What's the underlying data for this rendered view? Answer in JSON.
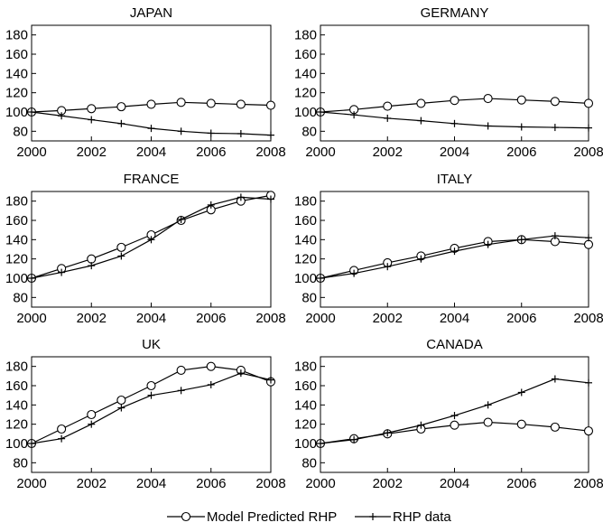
{
  "chart_data": [
    {
      "type": "line",
      "title": "JAPAN",
      "x": [
        2000,
        2001,
        2002,
        2003,
        2004,
        2005,
        2006,
        2007,
        2008
      ],
      "xticks": [
        2000,
        2002,
        2004,
        2006,
        2008
      ],
      "yticks": [
        80,
        100,
        120,
        140,
        160,
        180
      ],
      "xlim": [
        2000,
        2008
      ],
      "ylim": [
        70,
        190
      ],
      "series": [
        {
          "name": "Model Predicted RHP",
          "marker": "circle",
          "values": [
            100,
            101.5,
            103.5,
            105.5,
            108,
            110,
            109,
            108,
            107
          ]
        },
        {
          "name": "RHP data",
          "marker": "plus",
          "values": [
            100,
            96,
            92,
            88,
            83,
            80,
            78,
            77.5,
            76
          ]
        }
      ]
    },
    {
      "type": "line",
      "title": "GERMANY",
      "x": [
        2000,
        2001,
        2002,
        2003,
        2004,
        2005,
        2006,
        2007,
        2008
      ],
      "xticks": [
        2000,
        2002,
        2004,
        2006,
        2008
      ],
      "yticks": [
        80,
        100,
        120,
        140,
        160,
        180
      ],
      "xlim": [
        2000,
        2008
      ],
      "ylim": [
        70,
        190
      ],
      "series": [
        {
          "name": "Model Predicted RHP",
          "marker": "circle",
          "values": [
            100,
            102.5,
            106,
            109,
            112,
            114,
            112.5,
            111,
            109
          ]
        },
        {
          "name": "RHP data",
          "marker": "plus",
          "values": [
            100,
            97,
            93.5,
            91,
            88,
            85.5,
            84.5,
            84,
            83.5
          ]
        }
      ]
    },
    {
      "type": "line",
      "title": "FRANCE",
      "x": [
        2000,
        2001,
        2002,
        2003,
        2004,
        2005,
        2006,
        2007,
        2008
      ],
      "xticks": [
        2000,
        2002,
        2004,
        2006,
        2008
      ],
      "yticks": [
        80,
        100,
        120,
        140,
        160,
        180
      ],
      "xlim": [
        2000,
        2008
      ],
      "ylim": [
        70,
        190
      ],
      "series": [
        {
          "name": "Model Predicted RHP",
          "marker": "circle",
          "values": [
            100,
            110,
            120,
            132,
            145,
            160,
            171,
            180,
            186
          ]
        },
        {
          "name": "RHP data",
          "marker": "plus",
          "values": [
            100,
            106,
            113,
            123,
            140,
            161,
            176,
            184,
            182
          ]
        }
      ]
    },
    {
      "type": "line",
      "title": "ITALY",
      "x": [
        2000,
        2001,
        2002,
        2003,
        2004,
        2005,
        2006,
        2007,
        2008
      ],
      "xticks": [
        2000,
        2002,
        2004,
        2006,
        2008
      ],
      "yticks": [
        80,
        100,
        120,
        140,
        160,
        180
      ],
      "xlim": [
        2000,
        2008
      ],
      "ylim": [
        70,
        190
      ],
      "series": [
        {
          "name": "Model Predicted RHP",
          "marker": "circle",
          "values": [
            100,
            108,
            116,
            123,
            131,
            138,
            140,
            138,
            135
          ]
        },
        {
          "name": "RHP data",
          "marker": "plus",
          "values": [
            100,
            105,
            112,
            120,
            128,
            135,
            140,
            144,
            142
          ]
        }
      ]
    },
    {
      "type": "line",
      "title": "UK",
      "x": [
        2000,
        2001,
        2002,
        2003,
        2004,
        2005,
        2006,
        2007,
        2008
      ],
      "xticks": [
        2000,
        2002,
        2004,
        2006,
        2008
      ],
      "yticks": [
        80,
        100,
        120,
        140,
        160,
        180
      ],
      "xlim": [
        2000,
        2008
      ],
      "ylim": [
        70,
        190
      ],
      "series": [
        {
          "name": "Model Predicted RHP",
          "marker": "circle",
          "values": [
            100,
            115,
            130,
            145,
            160,
            176,
            180,
            176,
            164
          ]
        },
        {
          "name": "RHP data",
          "marker": "plus",
          "values": [
            100,
            105,
            120,
            137,
            150,
            155,
            161,
            173,
            166
          ]
        }
      ]
    },
    {
      "type": "line",
      "title": "CANADA",
      "x": [
        2000,
        2001,
        2002,
        2003,
        2004,
        2005,
        2006,
        2007,
        2008
      ],
      "xticks": [
        2000,
        2002,
        2004,
        2006,
        2008
      ],
      "yticks": [
        80,
        100,
        120,
        140,
        160,
        180
      ],
      "xlim": [
        2000,
        2008
      ],
      "ylim": [
        70,
        190
      ],
      "series": [
        {
          "name": "Model Predicted RHP",
          "marker": "circle",
          "values": [
            100,
            105,
            110,
            115,
            119,
            122,
            120,
            117,
            113
          ]
        },
        {
          "name": "RHP data",
          "marker": "plus",
          "values": [
            100,
            104,
            111,
            119,
            129,
            140,
            153,
            167,
            163
          ]
        }
      ]
    }
  ],
  "legend": {
    "placement": "bottom-center",
    "items": [
      {
        "label": "Model Predicted RHP",
        "marker": "circle"
      },
      {
        "label": "RHP data",
        "marker": "plus"
      }
    ]
  }
}
